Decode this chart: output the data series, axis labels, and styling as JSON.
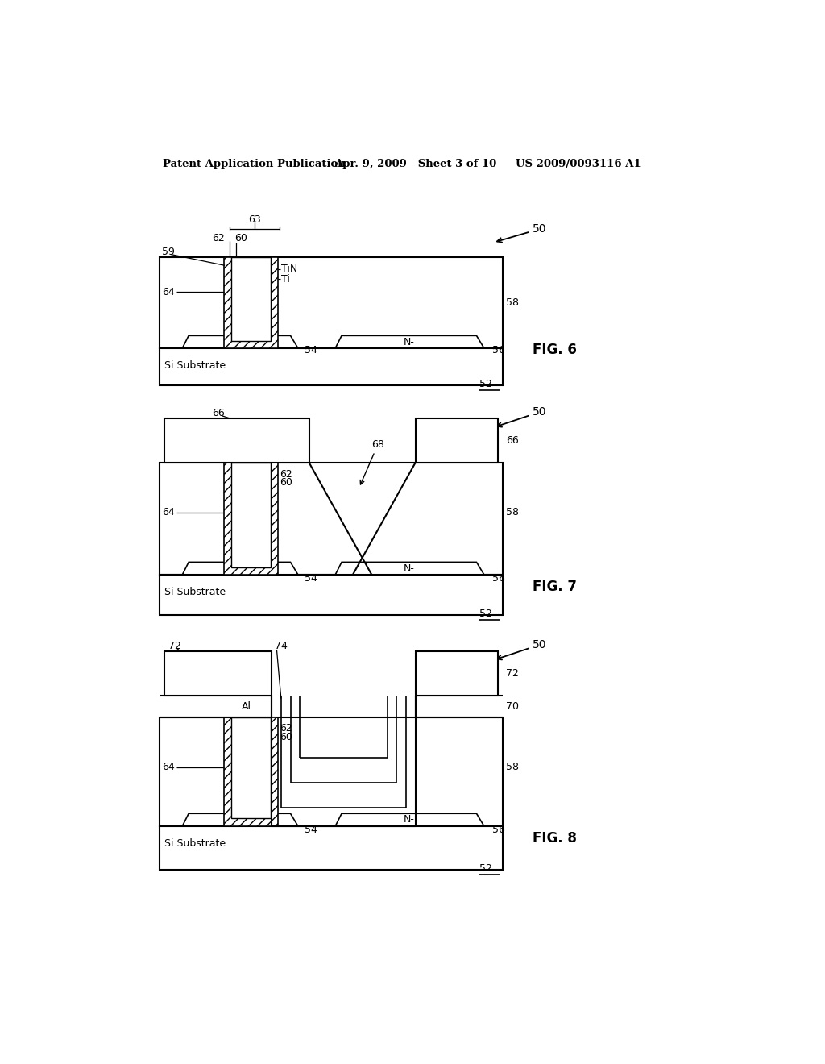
{
  "title_left": "Patent Application Publication",
  "title_mid": "Apr. 9, 2009   Sheet 3 of 10",
  "title_right": "US 2009/0093116 A1",
  "bg_color": "#ffffff"
}
